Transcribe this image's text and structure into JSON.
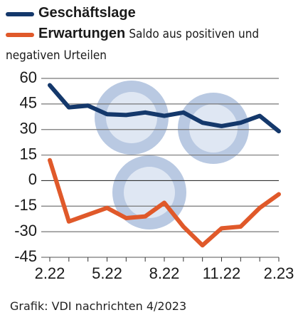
{
  "chart_data": {
    "type": "line",
    "subtitle": "Saldo aus positiven und negativen Urteilen",
    "source": "Grafik: VDI nachrichten 4/2023",
    "categories": [
      "2.22",
      null,
      null,
      "5.22",
      null,
      null,
      "8.22",
      null,
      null,
      "11.22",
      null,
      null,
      "2.23"
    ],
    "series": [
      {
        "name": "Geschäftslage",
        "color": "#14386b",
        "values": [
          56,
          43,
          44,
          39,
          38.5,
          40,
          38,
          40,
          34,
          32,
          34,
          38,
          29
        ]
      },
      {
        "name": "Erwartungen",
        "color": "#e0592a",
        "values": [
          12,
          -24,
          -20,
          -16,
          -22,
          -21,
          -13,
          -27,
          -38,
          -28,
          -27,
          -16,
          -8
        ]
      }
    ],
    "ylim": [
      -45,
      60
    ],
    "yticks": [
      60,
      45,
      30,
      15,
      0,
      -15,
      -30,
      -45
    ],
    "grid": true
  }
}
